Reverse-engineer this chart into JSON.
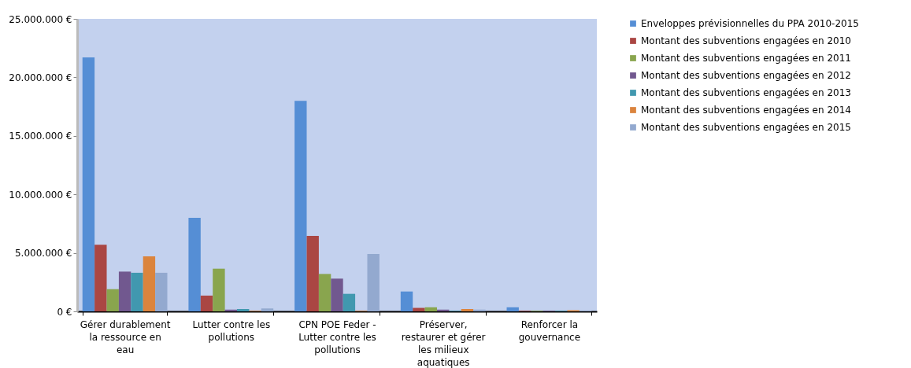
{
  "chart_data": {
    "type": "bar",
    "categories": [
      "Gérer durablement la ressource en eau",
      "Lutter contre les pollutions",
      "CPN POE Feder - Lutter contre les pollutions",
      "Préserver, restaurer et gérer les milieux aquatiques",
      "Renforcer la gouvernance"
    ],
    "series": [
      {
        "name": "Enveloppes prévisionnelles du PPA 2010-2015",
        "color": "#558ed5",
        "values": [
          21700000,
          8000000,
          18000000,
          1700000,
          350000
        ]
      },
      {
        "name": "Montant des subventions engagées en 2010",
        "color": "#aa4643",
        "values": [
          5700000,
          1350000,
          6450000,
          300000,
          50000
        ]
      },
      {
        "name": "Montant des subventions engagées en 2011",
        "color": "#89a54e",
        "values": [
          1900000,
          3650000,
          3200000,
          350000,
          50000
        ]
      },
      {
        "name": "Montant des subventions engagées en 2012",
        "color": "#71588f",
        "values": [
          3400000,
          150000,
          2800000,
          150000,
          50000
        ]
      },
      {
        "name": "Montant des subventions engagées en 2013",
        "color": "#4198af",
        "values": [
          3300000,
          200000,
          1500000,
          50000,
          50000
        ]
      },
      {
        "name": "Montant des subventions engagées en 2014",
        "color": "#db843d",
        "values": [
          4700000,
          50000,
          50000,
          200000,
          100000
        ]
      },
      {
        "name": "Montant des subventions engagées en 2015",
        "color": "#93a9cf",
        "values": [
          3300000,
          250000,
          4900000,
          150000,
          50000
        ]
      }
    ],
    "ylim": [
      0,
      25000000
    ],
    "yticks": [
      {
        "value": 0,
        "label": "0 €"
      },
      {
        "value": 5000000,
        "label": "5.000.000 €"
      },
      {
        "value": 10000000,
        "label": "10.000.000 €"
      },
      {
        "value": 15000000,
        "label": "15.000.000 €"
      },
      {
        "value": 20000000,
        "label": "20.000.000 €"
      },
      {
        "value": 25000000,
        "label": "25.000.000 €"
      }
    ],
    "grid": false,
    "legend": "right"
  }
}
